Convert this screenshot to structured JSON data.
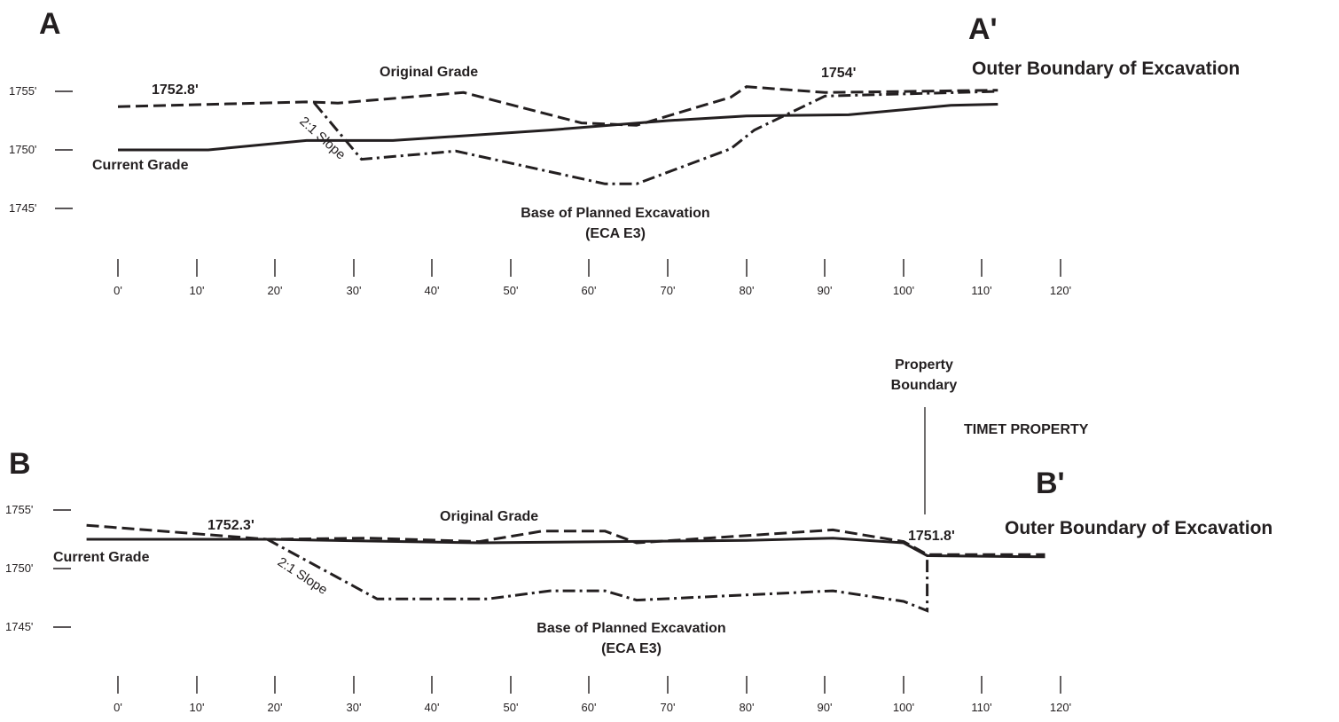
{
  "sections": {
    "a": {
      "start_label": "A",
      "end_label": "A'",
      "boundary_label": "Outer Boundary of Excavation",
      "elevation_labels": {
        "left": "1752.8'",
        "right": "1754'"
      },
      "original_grade_label": "Original Grade",
      "current_grade_label": "Current Grade",
      "slope_label": "2:1 Slope",
      "base_label_line1": "Base of Planned Excavation",
      "base_label_line2": "(ECA E3)",
      "y_ticks": [
        "1755'",
        "1750'",
        "1745'"
      ],
      "x_ticks": [
        "0'",
        "10'",
        "20'",
        "30'",
        "40'",
        "50'",
        "60'",
        "70'",
        "80'",
        "90'",
        "100'",
        "110'",
        "120'"
      ]
    },
    "b": {
      "start_label": "B",
      "end_label": "B'",
      "boundary_label": "Outer Boundary of Excavation",
      "elevation_labels": {
        "left": "1752.3'",
        "right": "1751.8'"
      },
      "original_grade_label": "Original Grade",
      "current_grade_label": "Current Grade",
      "slope_label": "2:1 Slope",
      "base_label_line1": "Base of Planned Excavation",
      "base_label_line2": "(ECA E3)",
      "property_boundary_line1": "Property",
      "property_boundary_line2": "Boundary",
      "neighbor_label": "TIMET PROPERTY",
      "y_ticks": [
        "1755'",
        "1750'",
        "1745'"
      ],
      "x_ticks": [
        "0'",
        "10'",
        "20'",
        "30'",
        "40'",
        "50'",
        "60'",
        "70'",
        "80'",
        "90'",
        "100'",
        "110'",
        "120'"
      ]
    }
  },
  "profiles": {
    "a": {
      "current_grade": [
        [
          0,
          1750.0
        ],
        [
          11.5,
          1750.0
        ],
        [
          24,
          1750.8
        ],
        [
          28,
          1750.8
        ],
        [
          35,
          1750.8
        ],
        [
          55,
          1751.7
        ],
        [
          70,
          1752.5
        ],
        [
          80,
          1752.9
        ],
        [
          93,
          1753.0
        ],
        [
          106,
          1753.8
        ],
        [
          112,
          1753.9
        ]
      ],
      "original_grade": [
        [
          0,
          1753.7
        ],
        [
          24,
          1754.1
        ],
        [
          28,
          1754.0
        ],
        [
          44,
          1754.9
        ],
        [
          59,
          1752.3
        ],
        [
          66,
          1752.1
        ],
        [
          78,
          1754.5
        ],
        [
          80,
          1755.4
        ],
        [
          90,
          1754.9
        ],
        [
          112,
          1755.1
        ]
      ],
      "base_excavation": [
        [
          25,
          1754.0
        ],
        [
          31,
          1749.2
        ],
        [
          43,
          1749.9
        ],
        [
          62,
          1747.1
        ],
        [
          66,
          1747.1
        ],
        [
          78,
          1750.1
        ],
        [
          81,
          1751.7
        ],
        [
          90,
          1754.6
        ],
        [
          112,
          1755.0
        ]
      ]
    },
    "b": {
      "current_grade": [
        [
          -4,
          1752.5
        ],
        [
          19,
          1752.5
        ],
        [
          46,
          1752.2
        ],
        [
          80,
          1752.4
        ],
        [
          91,
          1752.6
        ],
        [
          100,
          1752.2
        ],
        [
          103,
          1751.1
        ],
        [
          118,
          1751.0
        ]
      ],
      "original_grade": [
        [
          -4,
          1753.7
        ],
        [
          19,
          1752.5
        ],
        [
          32,
          1752.6
        ],
        [
          46,
          1752.3
        ],
        [
          54,
          1753.2
        ],
        [
          62,
          1753.2
        ],
        [
          66,
          1752.2
        ],
        [
          91,
          1753.3
        ],
        [
          100,
          1752.3
        ],
        [
          103,
          1751.2
        ],
        [
          118,
          1751.2
        ]
      ],
      "base_excavation": [
        [
          19,
          1752.5
        ],
        [
          33,
          1747.4
        ],
        [
          47,
          1747.4
        ],
        [
          55,
          1748.1
        ],
        [
          62,
          1748.1
        ],
        [
          66,
          1747.3
        ],
        [
          91,
          1748.1
        ],
        [
          100,
          1747.2
        ],
        [
          103,
          1746.4
        ],
        [
          103,
          1751.2
        ]
      ]
    }
  }
}
